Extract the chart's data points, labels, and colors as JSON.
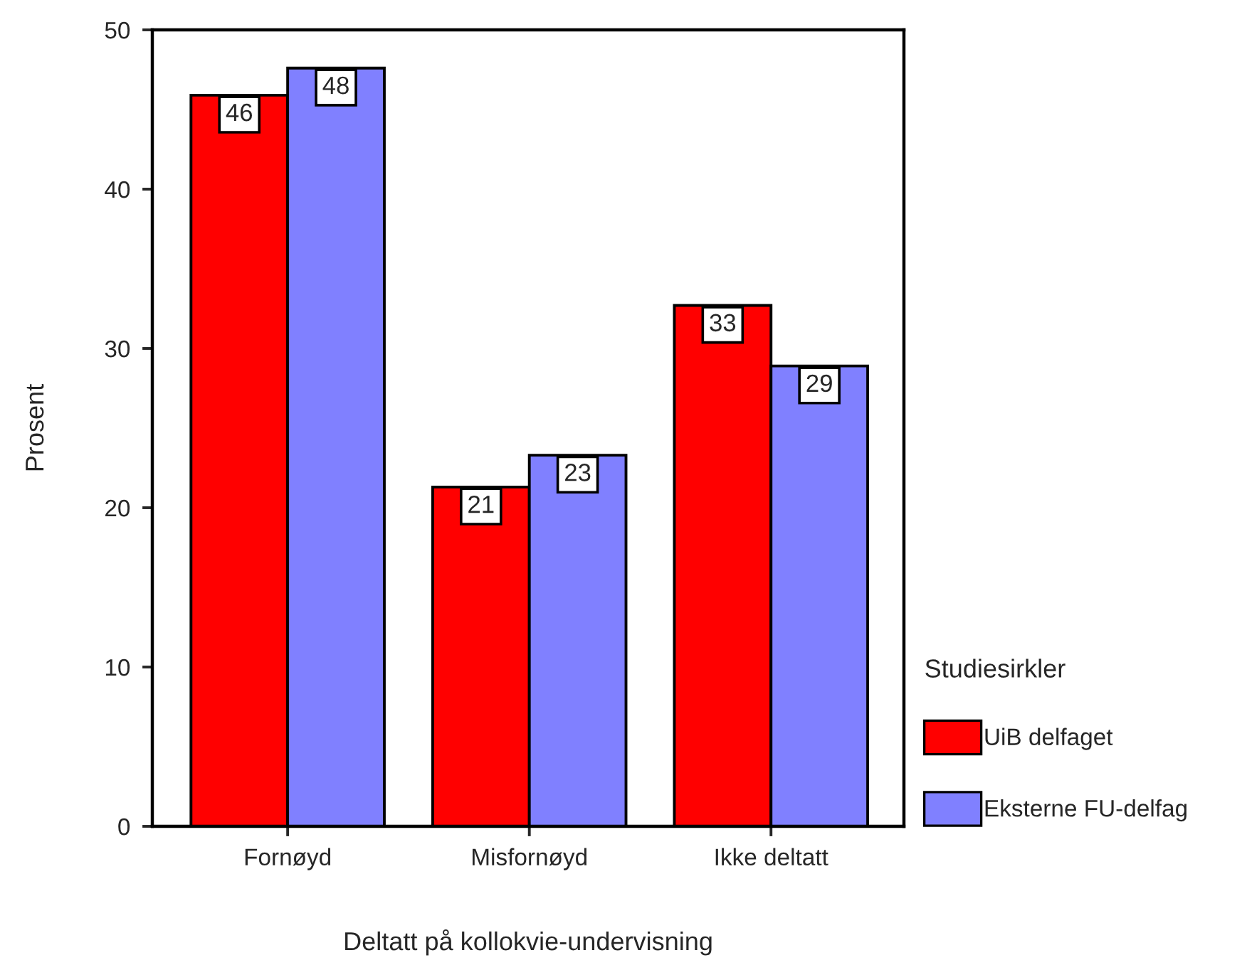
{
  "chart_data": {
    "type": "bar",
    "xlabel": "Deltatt på kollokvie-undervisning",
    "ylabel": "Prosent",
    "legend_title": "Studiesirkler",
    "categories": [
      "Fornøyd",
      "Misfornøyd",
      "Ikke deltatt"
    ],
    "series": [
      {
        "name": "UiB delfaget",
        "color": "#ff0000",
        "values": [
          45.9,
          21.3,
          32.7
        ],
        "value_labels": [
          "46",
          "21",
          "33"
        ]
      },
      {
        "name": "Eksterne FU-delfag",
        "color": "#8080ff",
        "values": [
          47.6,
          23.3,
          28.9
        ],
        "value_labels": [
          "48",
          "23",
          "29"
        ]
      }
    ],
    "ylim": [
      0,
      50
    ],
    "yticks": [
      0,
      10,
      20,
      30,
      40,
      50
    ],
    "grid": false,
    "legend": "right"
  }
}
